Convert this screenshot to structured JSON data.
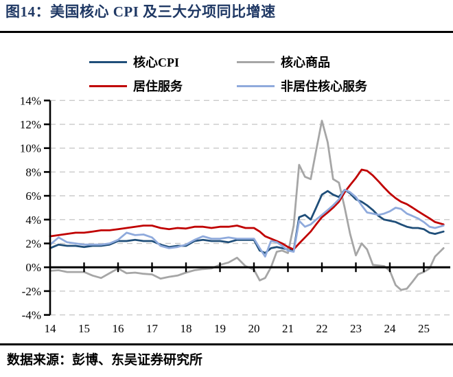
{
  "header": {
    "title": "图14：美国核心 CPI 及三大分项同比增速"
  },
  "legend": [
    {
      "label": "核心CPI",
      "color": "#1f4e79"
    },
    {
      "label": "核心商品",
      "color": "#a6a6a6"
    },
    {
      "label": "居住服务",
      "color": "#c00000"
    },
    {
      "label": "非居住核心服务",
      "color": "#8faadc"
    }
  ],
  "footer": {
    "source": "数据来源：彭博、东吴证券研究所"
  },
  "chart_data": {
    "type": "line",
    "title": "美国核心 CPI 及三大分项同比增速",
    "xlabel": "",
    "ylabel": "",
    "unit": "%",
    "grid": "horizontal-dashed",
    "legend_position": "top",
    "ylim": [
      -4,
      14
    ],
    "xlim": [
      2014,
      2025.8
    ],
    "y_ticks": [
      14,
      12,
      10,
      8,
      6,
      4,
      2,
      0,
      -2,
      -4
    ],
    "y_tick_labels": [
      "14%",
      "12%",
      "10%",
      "8%",
      "6%",
      "4%",
      "2%",
      "0%",
      "-2%",
      "-4%"
    ],
    "x_ticks": [
      2014,
      2015,
      2016,
      2017,
      2018,
      2019,
      2020,
      2021,
      2022,
      2023,
      2024,
      2025
    ],
    "x_tick_labels": [
      "14",
      "15",
      "16",
      "17",
      "18",
      "19",
      "20",
      "21",
      "22",
      "23",
      "24",
      "25"
    ],
    "x": [
      2014,
      2014.25,
      2014.5,
      2014.75,
      2015,
      2015.25,
      2015.5,
      2015.75,
      2016,
      2016.25,
      2016.5,
      2016.75,
      2017,
      2017.25,
      2017.5,
      2017.75,
      2018,
      2018.25,
      2018.5,
      2018.75,
      2019,
      2019.25,
      2019.5,
      2019.75,
      2020,
      2020.17,
      2020.33,
      2020.5,
      2020.67,
      2020.83,
      2021,
      2021.17,
      2021.33,
      2021.5,
      2021.67,
      2021.83,
      2022,
      2022.17,
      2022.33,
      2022.5,
      2022.67,
      2022.83,
      2023,
      2023.17,
      2023.33,
      2023.5,
      2023.67,
      2023.83,
      2024,
      2024.17,
      2024.33,
      2024.5,
      2024.67,
      2024.83,
      2025,
      2025.17,
      2025.33,
      2025.58
    ],
    "series": [
      {
        "name": "核心CPI",
        "color": "#1f4e79",
        "values": [
          1.6,
          1.9,
          1.8,
          1.8,
          1.7,
          1.8,
          1.8,
          1.9,
          2.2,
          2.2,
          2.3,
          2.2,
          2.2,
          1.9,
          1.7,
          1.8,
          1.8,
          2.2,
          2.3,
          2.2,
          2.2,
          2.1,
          2.3,
          2.3,
          2.3,
          1.4,
          1.2,
          1.6,
          1.7,
          1.6,
          1.5,
          1.4,
          4.2,
          4.4,
          4.0,
          5.0,
          6.1,
          6.4,
          6.1,
          5.9,
          6.5,
          6.2,
          5.7,
          5.5,
          5.2,
          4.8,
          4.3,
          4.0,
          3.9,
          3.8,
          3.6,
          3.4,
          3.3,
          3.3,
          3.2,
          2.9,
          2.8,
          3.0
        ]
      },
      {
        "name": "核心商品",
        "color": "#a6a6a6",
        "values": [
          -0.3,
          -0.25,
          -0.4,
          -0.4,
          -0.4,
          -0.7,
          -0.9,
          -0.5,
          -0.1,
          -0.5,
          -0.45,
          -0.55,
          -0.6,
          -0.95,
          -0.8,
          -0.7,
          -0.45,
          -0.25,
          -0.15,
          -0.1,
          0.2,
          0.4,
          0.8,
          0.1,
          -0.2,
          -1.1,
          -0.9,
          0.0,
          1.3,
          1.4,
          1.2,
          3.5,
          8.6,
          7.6,
          7.4,
          9.8,
          12.3,
          10.5,
          7.4,
          7.1,
          5.0,
          2.8,
          1.0,
          2.0,
          1.5,
          0.2,
          0.15,
          0.1,
          -0.3,
          -1.5,
          -1.9,
          -1.8,
          -1.2,
          -0.6,
          -0.4,
          -0.1,
          0.9,
          1.6
        ]
      },
      {
        "name": "居住服务",
        "color": "#c00000",
        "values": [
          2.6,
          2.7,
          2.8,
          2.9,
          2.9,
          3.0,
          3.1,
          3.1,
          3.2,
          3.3,
          3.4,
          3.5,
          3.5,
          3.3,
          3.2,
          3.3,
          3.25,
          3.4,
          3.4,
          3.3,
          3.4,
          3.4,
          3.5,
          3.3,
          3.3,
          3.0,
          2.6,
          2.4,
          2.2,
          2.0,
          1.7,
          1.5,
          2.0,
          2.5,
          3.0,
          3.6,
          4.2,
          4.6,
          5.0,
          5.5,
          6.3,
          6.9,
          7.5,
          8.2,
          8.1,
          7.7,
          7.2,
          6.7,
          6.2,
          5.8,
          5.5,
          5.3,
          5.0,
          4.7,
          4.4,
          4.1,
          3.8,
          3.6
        ]
      },
      {
        "name": "非居住核心服务",
        "color": "#8faadc",
        "values": [
          1.9,
          2.5,
          2.1,
          2.0,
          1.9,
          1.9,
          1.9,
          2.0,
          2.3,
          2.9,
          2.7,
          2.75,
          2.5,
          1.8,
          1.6,
          1.7,
          1.9,
          2.3,
          2.6,
          2.4,
          2.4,
          2.5,
          2.4,
          2.4,
          2.4,
          1.6,
          0.9,
          2.2,
          2.1,
          1.8,
          1.4,
          1.3,
          3.9,
          3.4,
          3.6,
          4.0,
          4.4,
          4.8,
          5.2,
          5.7,
          6.5,
          6.3,
          5.9,
          5.2,
          4.6,
          4.5,
          4.4,
          4.5,
          4.7,
          5.0,
          4.9,
          4.5,
          4.3,
          4.1,
          3.8,
          3.4,
          3.3,
          3.5
        ]
      }
    ]
  }
}
